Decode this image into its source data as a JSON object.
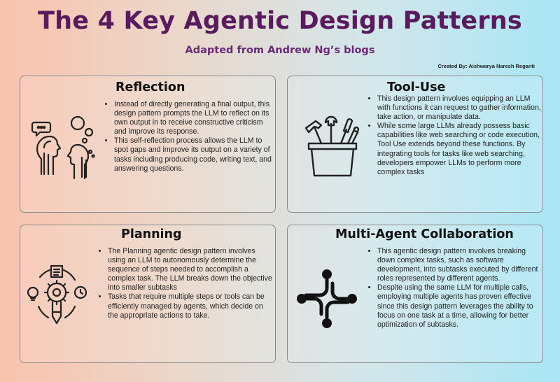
{
  "header": {
    "title": "The 4 Key Agentic Design Patterns",
    "subtitle": "Adapted from Andrew Ng’s blogs",
    "credit": "Created By: Aishwarya Naresh Reganti"
  },
  "cards": [
    {
      "title": "Reflection",
      "icon": "reflection-thinking-people-icon",
      "bullets": [
        "Instead of directly generating a final output, this design pattern prompts the LLM to reflect on its own output in to receive constructive criticism and improve its response.",
        "This self-reflection process allows the LLM to spot gaps and improve its output on a variety of tasks including producing code, writing text, and answering questions."
      ]
    },
    {
      "title": "Tool-Use",
      "icon": "toolbox-icon",
      "bullets": [
        "This design pattern involves equipping an LLM with functions it can request to gather information, take action, or manipulate data.",
        "While some large LLMs already possess basic capabilities like web searching or code execution, Tool Use extends beyond these functions. By integrating tools for tasks like web searching, developers empower LLMs to perform more complex tasks"
      ]
    },
    {
      "title": "Planning",
      "icon": "planning-cycle-icon",
      "bullets": [
        "The Planning agentic design pattern involves using an LLM to autonomously determine the sequence of steps needed to accomplish a complex task.  The LLM breaks down the objective into smaller subtasks",
        "Tasks that require multiple steps or tools can be efficiently managed by agents, which decide on the appropriate actions to take."
      ]
    },
    {
      "title": "Multi-Agent Collaboration",
      "icon": "collaboration-network-icon",
      "bullets": [
        "This agentic design pattern involves breaking down complex tasks, such as software development, into subtasks executed by different roles represented by different agents.",
        "Despite using the same LLM for multiple calls, employing multiple agents has proven effective since this design pattern leverages the ability to focus on one task at a time, allowing for better optimization of subtasks."
      ]
    }
  ]
}
